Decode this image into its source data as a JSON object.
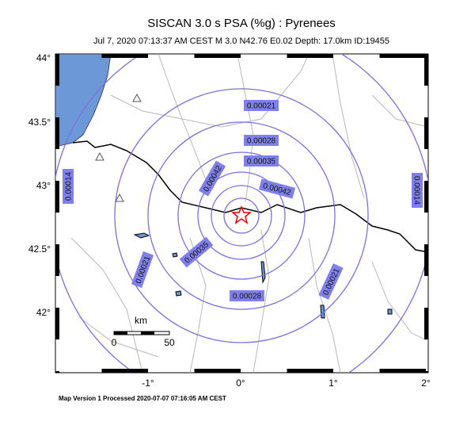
{
  "header": {
    "title": "SISCAN 3.0 s PSA (%g) : Pyrenees",
    "subtitle": "Jul  7, 2020 07:13:37 AM CEST   M 3.0    N42.76 E0.02   Depth: 17.0km   ID:19455"
  },
  "axes": {
    "lat_labels": [
      "44°",
      "43.5°",
      "43°",
      "42.5°",
      "42°"
    ],
    "lon_labels": [
      "-1°",
      "0°",
      "1°",
      "2°"
    ]
  },
  "contours": {
    "labels": [
      "0.00021",
      "0.00028",
      "0.00035",
      "0.00042",
      "0.00042",
      "0.00035",
      "0.00028",
      "0.00021",
      "0.00021",
      "0.00014",
      "0.00014"
    ]
  },
  "scale_bar": {
    "unit": "km",
    "start": "0",
    "end": "50"
  },
  "footer": "Map Version 1 Processed 2020-07-07 07:16:05 AM CEST"
}
